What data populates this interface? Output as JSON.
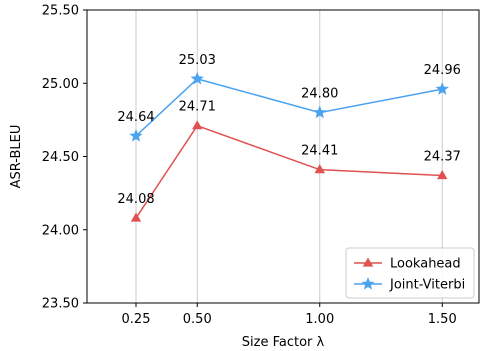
{
  "chart_data": {
    "type": "line",
    "x": [
      0.25,
      0.5,
      1.0,
      1.5
    ],
    "x_tick_labels": [
      "0.25",
      "0.50",
      "1.00",
      "1.50"
    ],
    "xlabel": "Size Factor λ",
    "ylabel": "ASR-BLEU",
    "xlim": [
      0.05,
      1.65
    ],
    "ylim": [
      23.5,
      25.5
    ],
    "y_ticks": [
      23.5,
      24.0,
      24.5,
      25.0,
      25.5
    ],
    "y_tick_labels": [
      "23.50",
      "24.00",
      "24.50",
      "25.00",
      "25.50"
    ],
    "grid": "vertical",
    "legend_position": "lower-right",
    "series": [
      {
        "name": "Lookahead",
        "values": [
          24.08,
          24.71,
          24.41,
          24.37
        ],
        "labels": [
          "24.08",
          "24.71",
          "24.41",
          "24.37"
        ],
        "color": "#e05252",
        "marker": "triangle"
      },
      {
        "name": "Joint-Viterbi",
        "values": [
          24.64,
          25.03,
          24.8,
          24.96
        ],
        "labels": [
          "24.64",
          "25.03",
          "24.80",
          "24.96"
        ],
        "color": "#4aa3ee",
        "marker": "star"
      }
    ]
  }
}
